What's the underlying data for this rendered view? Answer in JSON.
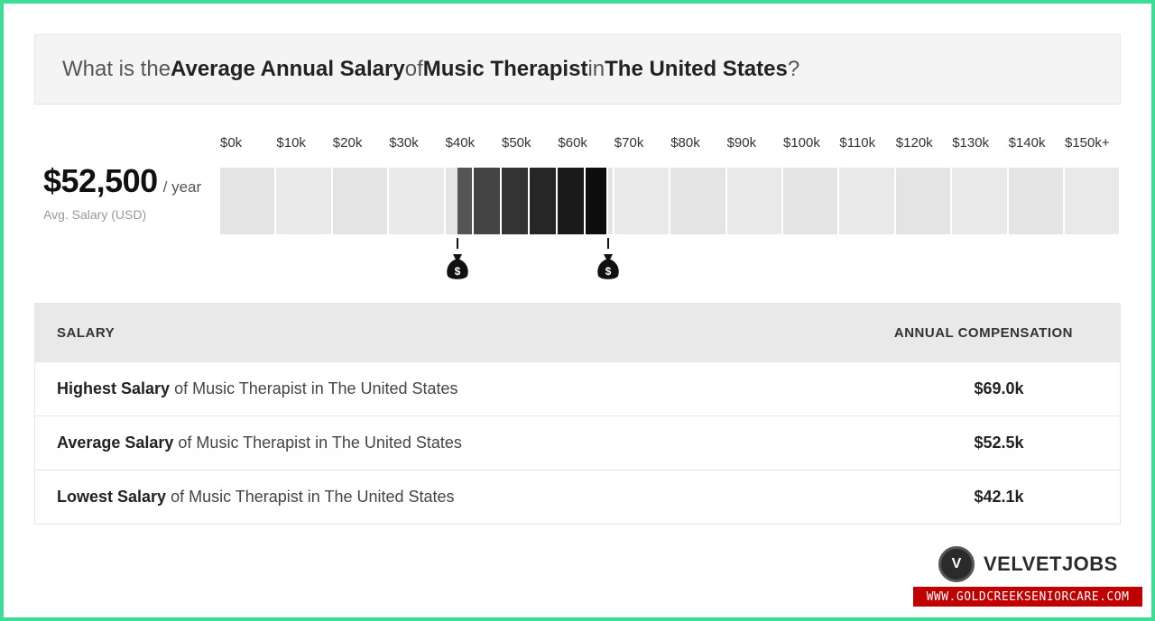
{
  "question": {
    "prefix": "What is the ",
    "bold1": "Average Annual Salary",
    "mid1": " of ",
    "bold2": "Music Therapist",
    "mid2": " in ",
    "bold3": "The United States",
    "suffix": "?"
  },
  "average": {
    "value": "$52,500",
    "unit": "/ year",
    "label": "Avg. Salary (USD)"
  },
  "chart_data": {
    "type": "bar",
    "x_ticks": [
      "$0k",
      "$10k",
      "$20k",
      "$30k",
      "$40k",
      "$50k",
      "$60k",
      "$70k",
      "$80k",
      "$90k",
      "$100k",
      "$110k",
      "$120k",
      "$130k",
      "$140k",
      "$150k+"
    ],
    "range_low": 42100,
    "range_high": 69000,
    "average": 52500,
    "xlim": [
      0,
      160000
    ],
    "segments": [
      {
        "from": 42100,
        "to": 45000,
        "color": "#555555"
      },
      {
        "from": 45000,
        "to": 50000,
        "color": "#444444"
      },
      {
        "from": 50000,
        "to": 55000,
        "color": "#333333"
      },
      {
        "from": 55000,
        "to": 60000,
        "color": "#262626"
      },
      {
        "from": 60000,
        "to": 65000,
        "color": "#1a1a1a"
      },
      {
        "from": 65000,
        "to": 69000,
        "color": "#0d0d0d"
      }
    ],
    "markers": [
      42100,
      69000
    ]
  },
  "table": {
    "col1": "SALARY",
    "col2": "ANNUAL COMPENSATION",
    "rows": [
      {
        "bold": "Highest Salary",
        "rest": " of Music Therapist in The United States",
        "value": "$69.0k"
      },
      {
        "bold": "Average Salary",
        "rest": " of Music Therapist in The United States",
        "value": "$52.5k"
      },
      {
        "bold": "Lowest Salary",
        "rest": " of Music Therapist in The United States",
        "value": "$42.1k"
      }
    ]
  },
  "brand": {
    "logo_letter": "V",
    "name": "VELVETJOBS"
  },
  "watermark": "WWW.GOLDCREEKSENIORCARE.COM"
}
